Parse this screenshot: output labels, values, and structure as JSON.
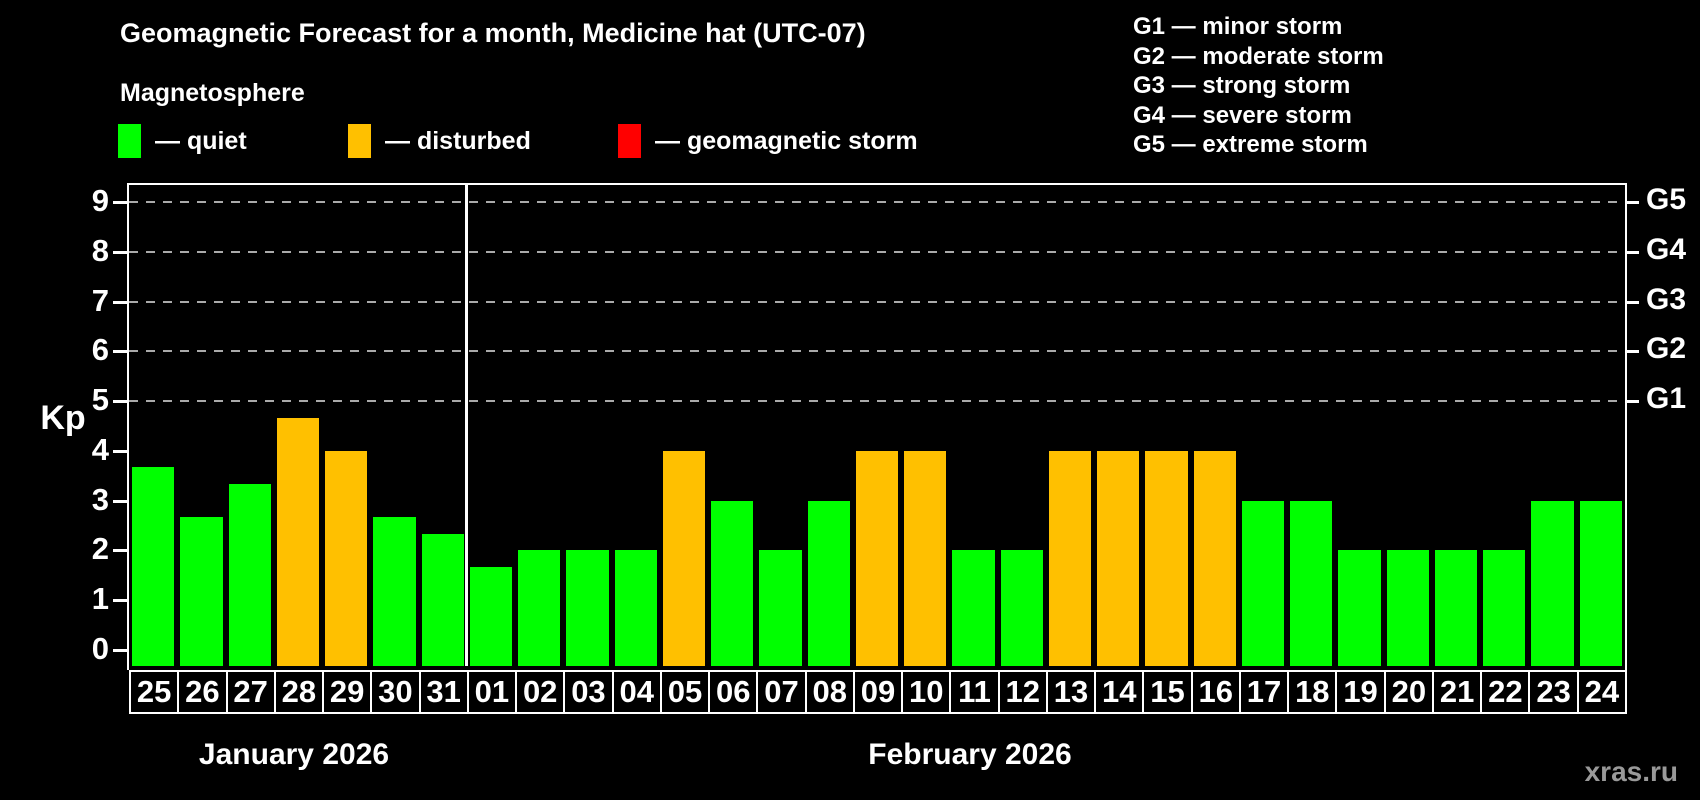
{
  "title": "Geomagnetic Forecast for a month, Medicine hat (UTC-07)",
  "subtitle": "Magnetosphere",
  "watermark": "xras.ru",
  "legend": {
    "items": [
      {
        "name": "quiet",
        "label": "— quiet",
        "color": "#00ff00"
      },
      {
        "name": "disturbed",
        "label": "— disturbed",
        "color": "#ffc000"
      },
      {
        "name": "storm",
        "label": "— geomagnetic storm",
        "color": "#ff0000"
      }
    ]
  },
  "g_scale_legend": [
    "G1 — minor storm",
    "G2 — moderate storm",
    "G3 — strong storm",
    "G4 — severe storm",
    "G5 — extreme storm"
  ],
  "chart_data": {
    "type": "bar",
    "title": "Geomagnetic Forecast for a month, Medicine hat (UTC-07)",
    "ylabel": "Kp",
    "ylim": [
      0,
      9
    ],
    "yticks": [
      0,
      1,
      2,
      3,
      4,
      5,
      6,
      7,
      8,
      9
    ],
    "grid": "dashed horizontal lines at Kp 5-9 only",
    "legend_position": "top-left",
    "right_axis": [
      {
        "kp": 5,
        "label": "G1"
      },
      {
        "kp": 6,
        "label": "G2"
      },
      {
        "kp": 7,
        "label": "G3"
      },
      {
        "kp": 8,
        "label": "G4"
      },
      {
        "kp": 9,
        "label": "G5"
      }
    ],
    "state_colors": {
      "quiet": "#00ff00",
      "disturbed": "#ffc000",
      "storm": "#ff0000"
    },
    "months": [
      {
        "label": "January 2026",
        "day_count": 7
      },
      {
        "label": "February 2026",
        "day_count": 24
      }
    ],
    "bars": [
      {
        "day": "25",
        "kp": 3.67,
        "state": "quiet"
      },
      {
        "day": "26",
        "kp": 2.67,
        "state": "quiet"
      },
      {
        "day": "27",
        "kp": 3.33,
        "state": "quiet"
      },
      {
        "day": "28",
        "kp": 4.67,
        "state": "disturbed"
      },
      {
        "day": "29",
        "kp": 4.0,
        "state": "disturbed"
      },
      {
        "day": "30",
        "kp": 2.67,
        "state": "quiet"
      },
      {
        "day": "31",
        "kp": 2.33,
        "state": "quiet"
      },
      {
        "day": "01",
        "kp": 1.67,
        "state": "quiet"
      },
      {
        "day": "02",
        "kp": 2.0,
        "state": "quiet"
      },
      {
        "day": "03",
        "kp": 2.0,
        "state": "quiet"
      },
      {
        "day": "04",
        "kp": 2.0,
        "state": "quiet"
      },
      {
        "day": "05",
        "kp": 4.0,
        "state": "disturbed"
      },
      {
        "day": "06",
        "kp": 3.0,
        "state": "quiet"
      },
      {
        "day": "07",
        "kp": 2.0,
        "state": "quiet"
      },
      {
        "day": "08",
        "kp": 3.0,
        "state": "quiet"
      },
      {
        "day": "09",
        "kp": 4.0,
        "state": "disturbed"
      },
      {
        "day": "10",
        "kp": 4.0,
        "state": "disturbed"
      },
      {
        "day": "11",
        "kp": 2.0,
        "state": "quiet"
      },
      {
        "day": "12",
        "kp": 2.0,
        "state": "quiet"
      },
      {
        "day": "13",
        "kp": 4.0,
        "state": "disturbed"
      },
      {
        "day": "14",
        "kp": 4.0,
        "state": "disturbed"
      },
      {
        "day": "15",
        "kp": 4.0,
        "state": "disturbed"
      },
      {
        "day": "16",
        "kp": 4.0,
        "state": "disturbed"
      },
      {
        "day": "17",
        "kp": 3.0,
        "state": "quiet"
      },
      {
        "day": "18",
        "kp": 3.0,
        "state": "quiet"
      },
      {
        "day": "19",
        "kp": 2.0,
        "state": "quiet"
      },
      {
        "day": "20",
        "kp": 2.0,
        "state": "quiet"
      },
      {
        "day": "21",
        "kp": 2.0,
        "state": "quiet"
      },
      {
        "day": "22",
        "kp": 2.0,
        "state": "quiet"
      },
      {
        "day": "23",
        "kp": 3.0,
        "state": "quiet"
      },
      {
        "day": "24",
        "kp": 3.0,
        "state": "quiet"
      }
    ]
  }
}
